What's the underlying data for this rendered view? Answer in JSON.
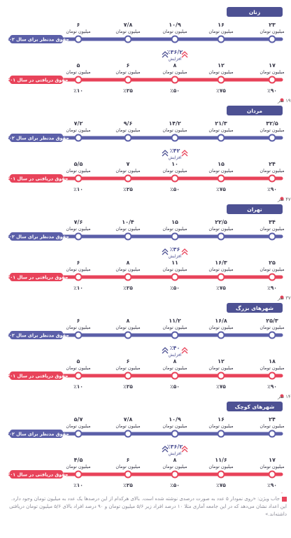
{
  "colors": {
    "expected": "#5b5fa8",
    "received": "#e8435a",
    "header_bg": "#4d5193",
    "badge": "#4d5193",
    "tick_text": "#3a3a4a",
    "sub_text": "#666666"
  },
  "chart_data": [
    {
      "type": "dumbbell",
      "title": "زنان",
      "series": [
        {
          "name": "حقوق مدنظر برای سال ۱۴۰۲",
          "values": [
            "۶",
            "۷/۸",
            "۱۰/۹",
            "۱۶",
            "۲۳"
          ],
          "units": [
            "میلیون تومان",
            "میلیون تومان",
            "میلیون تومان",
            "میلیون تومان",
            "میلیون تومان"
          ]
        },
        {
          "name": "حقوق دریافتی در سال ۱۴۰۱",
          "values": [
            "۵",
            "۶",
            "۸",
            "۱۲",
            "۱۷"
          ],
          "units": [
            "میلیون تومان",
            "میلیون تومان",
            "میلیون تومان",
            "میلیون تومان",
            "میلیون تومان"
          ]
        }
      ],
      "percentiles": [
        "٪۱۰",
        "٪۲۵",
        "٪۵۰",
        "٪۷۵",
        "٪۹۰"
      ],
      "change": "٪۳۶/۲",
      "change_label": "افزایش",
      "count_text": "تعداد زنان شرکت‌کننده: ۱۹۹۸۷ نفر"
    },
    {
      "type": "dumbbell",
      "title": "مردان",
      "series": [
        {
          "name": "حقوق مدنظر برای سال ۱۴۰۲",
          "values": [
            "۷/۲",
            "۹/۶",
            "۱۴/۲",
            "۲۱/۳",
            "۳۲/۵"
          ],
          "units": [
            "میلیون تومان",
            "میلیون تومان",
            "میلیون تومان",
            "میلیون تومان",
            "میلیون تومان"
          ]
        },
        {
          "name": "حقوق دریافتی در سال ۱۴۰۱",
          "values": [
            "۵/۵",
            "۷",
            "۱۰",
            "۱۵",
            "۲۴"
          ],
          "units": [
            "میلیون تومان",
            "میلیون تومان",
            "میلیون تومان",
            "میلیون تومان",
            "میلیون تومان"
          ]
        }
      ],
      "percentiles": [
        "٪۱۰",
        "٪۲۵",
        "٪۵۰",
        "٪۷۵",
        "٪۹۰"
      ],
      "change": "٪۴۲",
      "change_label": "افزایش",
      "count_text": "تعداد مردان شرکت‌کننده: ۴۷۷۵۵ نفر"
    },
    {
      "type": "dumbbell",
      "title": "تهران",
      "series": [
        {
          "name": "حقوق مدنظر برای سال ۱۴۰۲",
          "values": [
            "۷/۶",
            "۱۰/۴",
            "۱۵",
            "۲۲/۵",
            "۳۴"
          ],
          "units": [
            "میلیون تومان",
            "میلیون تومان",
            "میلیون تومان",
            "میلیون تومان",
            "میلیون تومان"
          ]
        },
        {
          "name": "حقوق دریافتی در سال ۱۴۰۱",
          "values": [
            "۶",
            "۸",
            "۱۱",
            "۱۶/۳",
            "۲۵"
          ],
          "units": [
            "میلیون تومان",
            "میلیون تومان",
            "میلیون تومان",
            "میلیون تومان",
            "میلیون تومان"
          ]
        }
      ],
      "percentiles": [
        "٪۱۰",
        "٪۲۵",
        "٪۵۰",
        "٪۷۵",
        "٪۹۰"
      ],
      "change": "٪۳۶",
      "change_label": "افزایش",
      "count_text": "تعداد شرکت‌کنندگان شاغل در تهران: ۳۷۳۳۳ نفر"
    },
    {
      "type": "dumbbell",
      "title": "شهرهای بزرگ",
      "series": [
        {
          "name": "حقوق مدنظر برای سال ۱۴۰۲",
          "values": [
            "۶",
            "۸",
            "۱۱/۲",
            "۱۶/۸",
            "۲۵/۳"
          ],
          "units": [
            "میلیون تومان",
            "میلیون تومان",
            "میلیون تومان",
            "میلیون تومان",
            "میلیون تومان"
          ]
        },
        {
          "name": "حقوق دریافتی در سال ۱۴۰۱",
          "values": [
            "۵",
            "۶",
            "۸",
            "۱۲",
            "۱۸"
          ],
          "units": [
            "میلیون تومان",
            "میلیون تومان",
            "میلیون تومان",
            "میلیون تومان",
            "میلیون تومان"
          ]
        }
      ],
      "percentiles": [
        "٪۱۰",
        "٪۲۵",
        "٪۵۰",
        "٪۷۵",
        "٪۹۰"
      ],
      "change": "٪۴۰",
      "change_label": "افزایش",
      "count_text": "تعداد شرکت‌کنندگان شاغل در شهرهای بزرگ: ۱۴۸۴۹ نفر"
    },
    {
      "type": "dumbbell",
      "title": "شهرهای کوچک",
      "series": [
        {
          "name": "حقوق مدنظر برای سال ۱۴۰۲",
          "values": [
            "۵/۷",
            "۷/۸",
            "۱۰/۹",
            "۱۶",
            "۲۴"
          ],
          "units": [
            "میلیون تومان",
            "میلیون تومان",
            "میلیون تومان",
            "میلیون تومان",
            "میلیون تومان"
          ]
        },
        {
          "name": "حقوق دریافتی در سال ۱۴۰۱",
          "values": [
            "۴/۵",
            "۶",
            "۸",
            "۱۱/۶",
            "۱۷"
          ],
          "units": [
            "میلیون تومان",
            "میلیون تومان",
            "میلیون تومان",
            "میلیون تومان",
            "میلیون تومان"
          ]
        }
      ],
      "percentiles": [
        "٪۱۰",
        "٪۲۵",
        "٪۵۰",
        "٪۷۵",
        "٪۹۰"
      ],
      "change": "٪۳۶/۲",
      "change_label": "افزایش",
      "count_text": "تعداد شرکت‌کنندگان شاغل در شهرهای کوچک: ۱۷۳۸۲ نفر"
    }
  ],
  "footer": {
    "text": "جاب ویژن: «روی نمودار ۵ عدد به صورت درصدی نوشته شده است. بالای هرکدام از این درصدها یک عدد به میلیون تومان وجود دارد. این اعداد نشان می‌دهد که در این جامعه آماری مثلا ۱۰ درصد افراد زیر ۵/۶ میلیون تومان و ۹۰ درصد افراد بالای ۵/۶ میلیون تومان دریافتی داشته‌اند.»"
  }
}
